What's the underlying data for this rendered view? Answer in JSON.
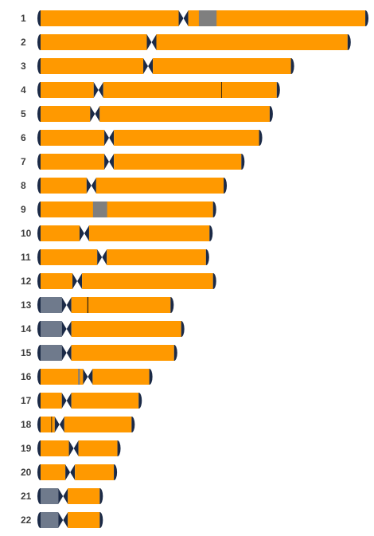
{
  "colors": {
    "arm": "#ff9900",
    "cap": "#1b2a47",
    "centromere": "#1b2a47",
    "gray_band": "#7f7f7f",
    "acro_stalk": "#6f7a8c",
    "band_line": "#3b2a10",
    "label": "#404040"
  },
  "chromosomes": [
    {
      "name": "1",
      "p_arm": 39,
      "q_arm": 50,
      "bands": [
        {
          "start": 42,
          "end": 47,
          "kind": "gray"
        },
        {
          "start": 47.2,
          "end": 47.8,
          "kind": "orange"
        }
      ]
    },
    {
      "name": "2",
      "p_arm": 30,
      "q_arm": 54,
      "bands": []
    },
    {
      "name": "3",
      "p_arm": 29,
      "q_arm": 39,
      "bands": []
    },
    {
      "name": "4",
      "p_arm": 15,
      "q_arm": 49,
      "bands": [
        {
          "start": 48.3,
          "end": 48.5,
          "kind": "line"
        }
      ]
    },
    {
      "name": "5",
      "p_arm": 14,
      "q_arm": 48,
      "bands": []
    },
    {
      "name": "6",
      "p_arm": 18,
      "q_arm": 41,
      "bands": []
    },
    {
      "name": "7",
      "p_arm": 18,
      "q_arm": 36,
      "bands": []
    },
    {
      "name": "8",
      "p_arm": 13,
      "q_arm": 36,
      "bands": []
    },
    {
      "name": "9",
      "p_arm": 16,
      "q_arm": 30,
      "bands": [
        {
          "start": 14.8,
          "end": 16.1,
          "kind": "gray"
        }
      ]
    },
    {
      "name": "10",
      "p_arm": 11,
      "q_arm": 34,
      "bands": []
    },
    {
      "name": "11",
      "p_arm": 16,
      "q_arm": 28,
      "bands": []
    },
    {
      "name": "12",
      "p_arm": 9,
      "q_arm": 37,
      "bands": []
    },
    {
      "name": "13",
      "p_arm": 6,
      "q_arm": 28,
      "acrocentric": true,
      "bands": [
        {
          "start": 10.5,
          "end": 10.8,
          "kind": "line"
        }
      ]
    },
    {
      "name": "14",
      "p_arm": 6,
      "q_arm": 31,
      "acrocentric": true,
      "bands": []
    },
    {
      "name": "15",
      "p_arm": 6,
      "q_arm": 29,
      "acrocentric": true,
      "bands": []
    },
    {
      "name": "16",
      "p_arm": 12,
      "q_arm": 16,
      "bands": [
        {
          "start": 10.6,
          "end": 11.1,
          "kind": "gray"
        }
      ]
    },
    {
      "name": "17",
      "p_arm": 6,
      "q_arm": 19,
      "bands": []
    },
    {
      "name": "18",
      "p_arm": 4,
      "q_arm": 19,
      "bands": [
        {
          "start": 3,
          "end": 3.2,
          "kind": "line"
        }
      ]
    },
    {
      "name": "19",
      "p_arm": 8,
      "q_arm": 11,
      "bands": []
    },
    {
      "name": "20",
      "p_arm": 7,
      "q_arm": 11,
      "bands": []
    },
    {
      "name": "21",
      "p_arm": 5,
      "q_arm": 9,
      "acrocentric": true,
      "bands": []
    },
    {
      "name": "22",
      "p_arm": 5,
      "q_arm": 9,
      "acrocentric": true,
      "bands": []
    }
  ]
}
